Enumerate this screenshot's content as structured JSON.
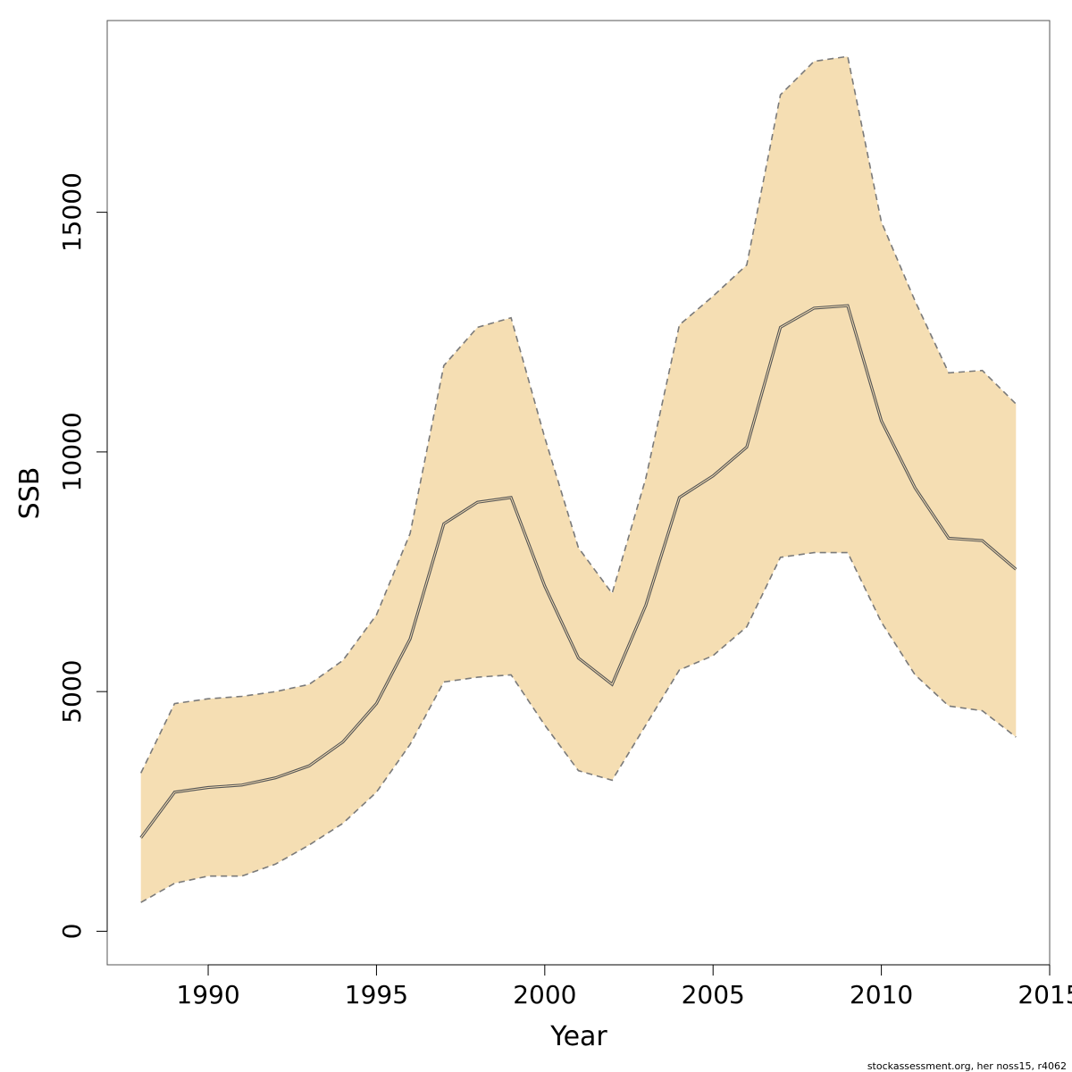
{
  "chart_data": {
    "type": "area",
    "title": "",
    "xlabel": "Year",
    "ylabel": "SSB",
    "xlim": [
      1987,
      2015
    ],
    "ylim": [
      -700,
      19000
    ],
    "x_ticks": [
      1990,
      1995,
      2000,
      2005,
      2010,
      2015
    ],
    "y_ticks": [
      0,
      5000,
      10000,
      15000
    ],
    "grid": false,
    "legend": "none",
    "x": [
      1988,
      1989,
      1990,
      1991,
      1992,
      1993,
      1994,
      1995,
      1996,
      1997,
      1998,
      1999,
      2000,
      2001,
      2002,
      2003,
      2004,
      2005,
      2006,
      2007,
      2008,
      2009,
      2010,
      2011,
      2012,
      2013,
      2014
    ],
    "series": [
      {
        "role": "estimate",
        "values": [
          1950,
          2900,
          3000,
          3050,
          3200,
          3450,
          3950,
          4750,
          6100,
          8500,
          8950,
          9050,
          7200,
          5700,
          5150,
          6800,
          9050,
          9500,
          10100,
          12600,
          13000,
          13050,
          10650,
          9250,
          8200,
          8150,
          7550
        ]
      },
      {
        "role": "upper",
        "values": [
          3300,
          4750,
          4850,
          4900,
          5000,
          5150,
          5650,
          6600,
          8300,
          11800,
          12600,
          12800,
          10300,
          8000,
          7050,
          9450,
          12650,
          13250,
          13900,
          17450,
          18150,
          18250,
          14800,
          13150,
          11650,
          11700,
          11000
        ]
      },
      {
        "role": "lower",
        "values": [
          600,
          1000,
          1150,
          1150,
          1400,
          1800,
          2250,
          2900,
          3900,
          5200,
          5300,
          5350,
          4300,
          3350,
          3150,
          4300,
          5450,
          5750,
          6350,
          7800,
          7900,
          7900,
          6450,
          5350,
          4700,
          4600,
          4050
        ]
      }
    ],
    "colors": {
      "band_fill": "#f5deb3",
      "band_border": "#7a7a7a",
      "estimate_line": "#555555",
      "axis": "#000000"
    }
  },
  "footer": {
    "credit": "stockassessment.org, her noss15, r4062"
  }
}
